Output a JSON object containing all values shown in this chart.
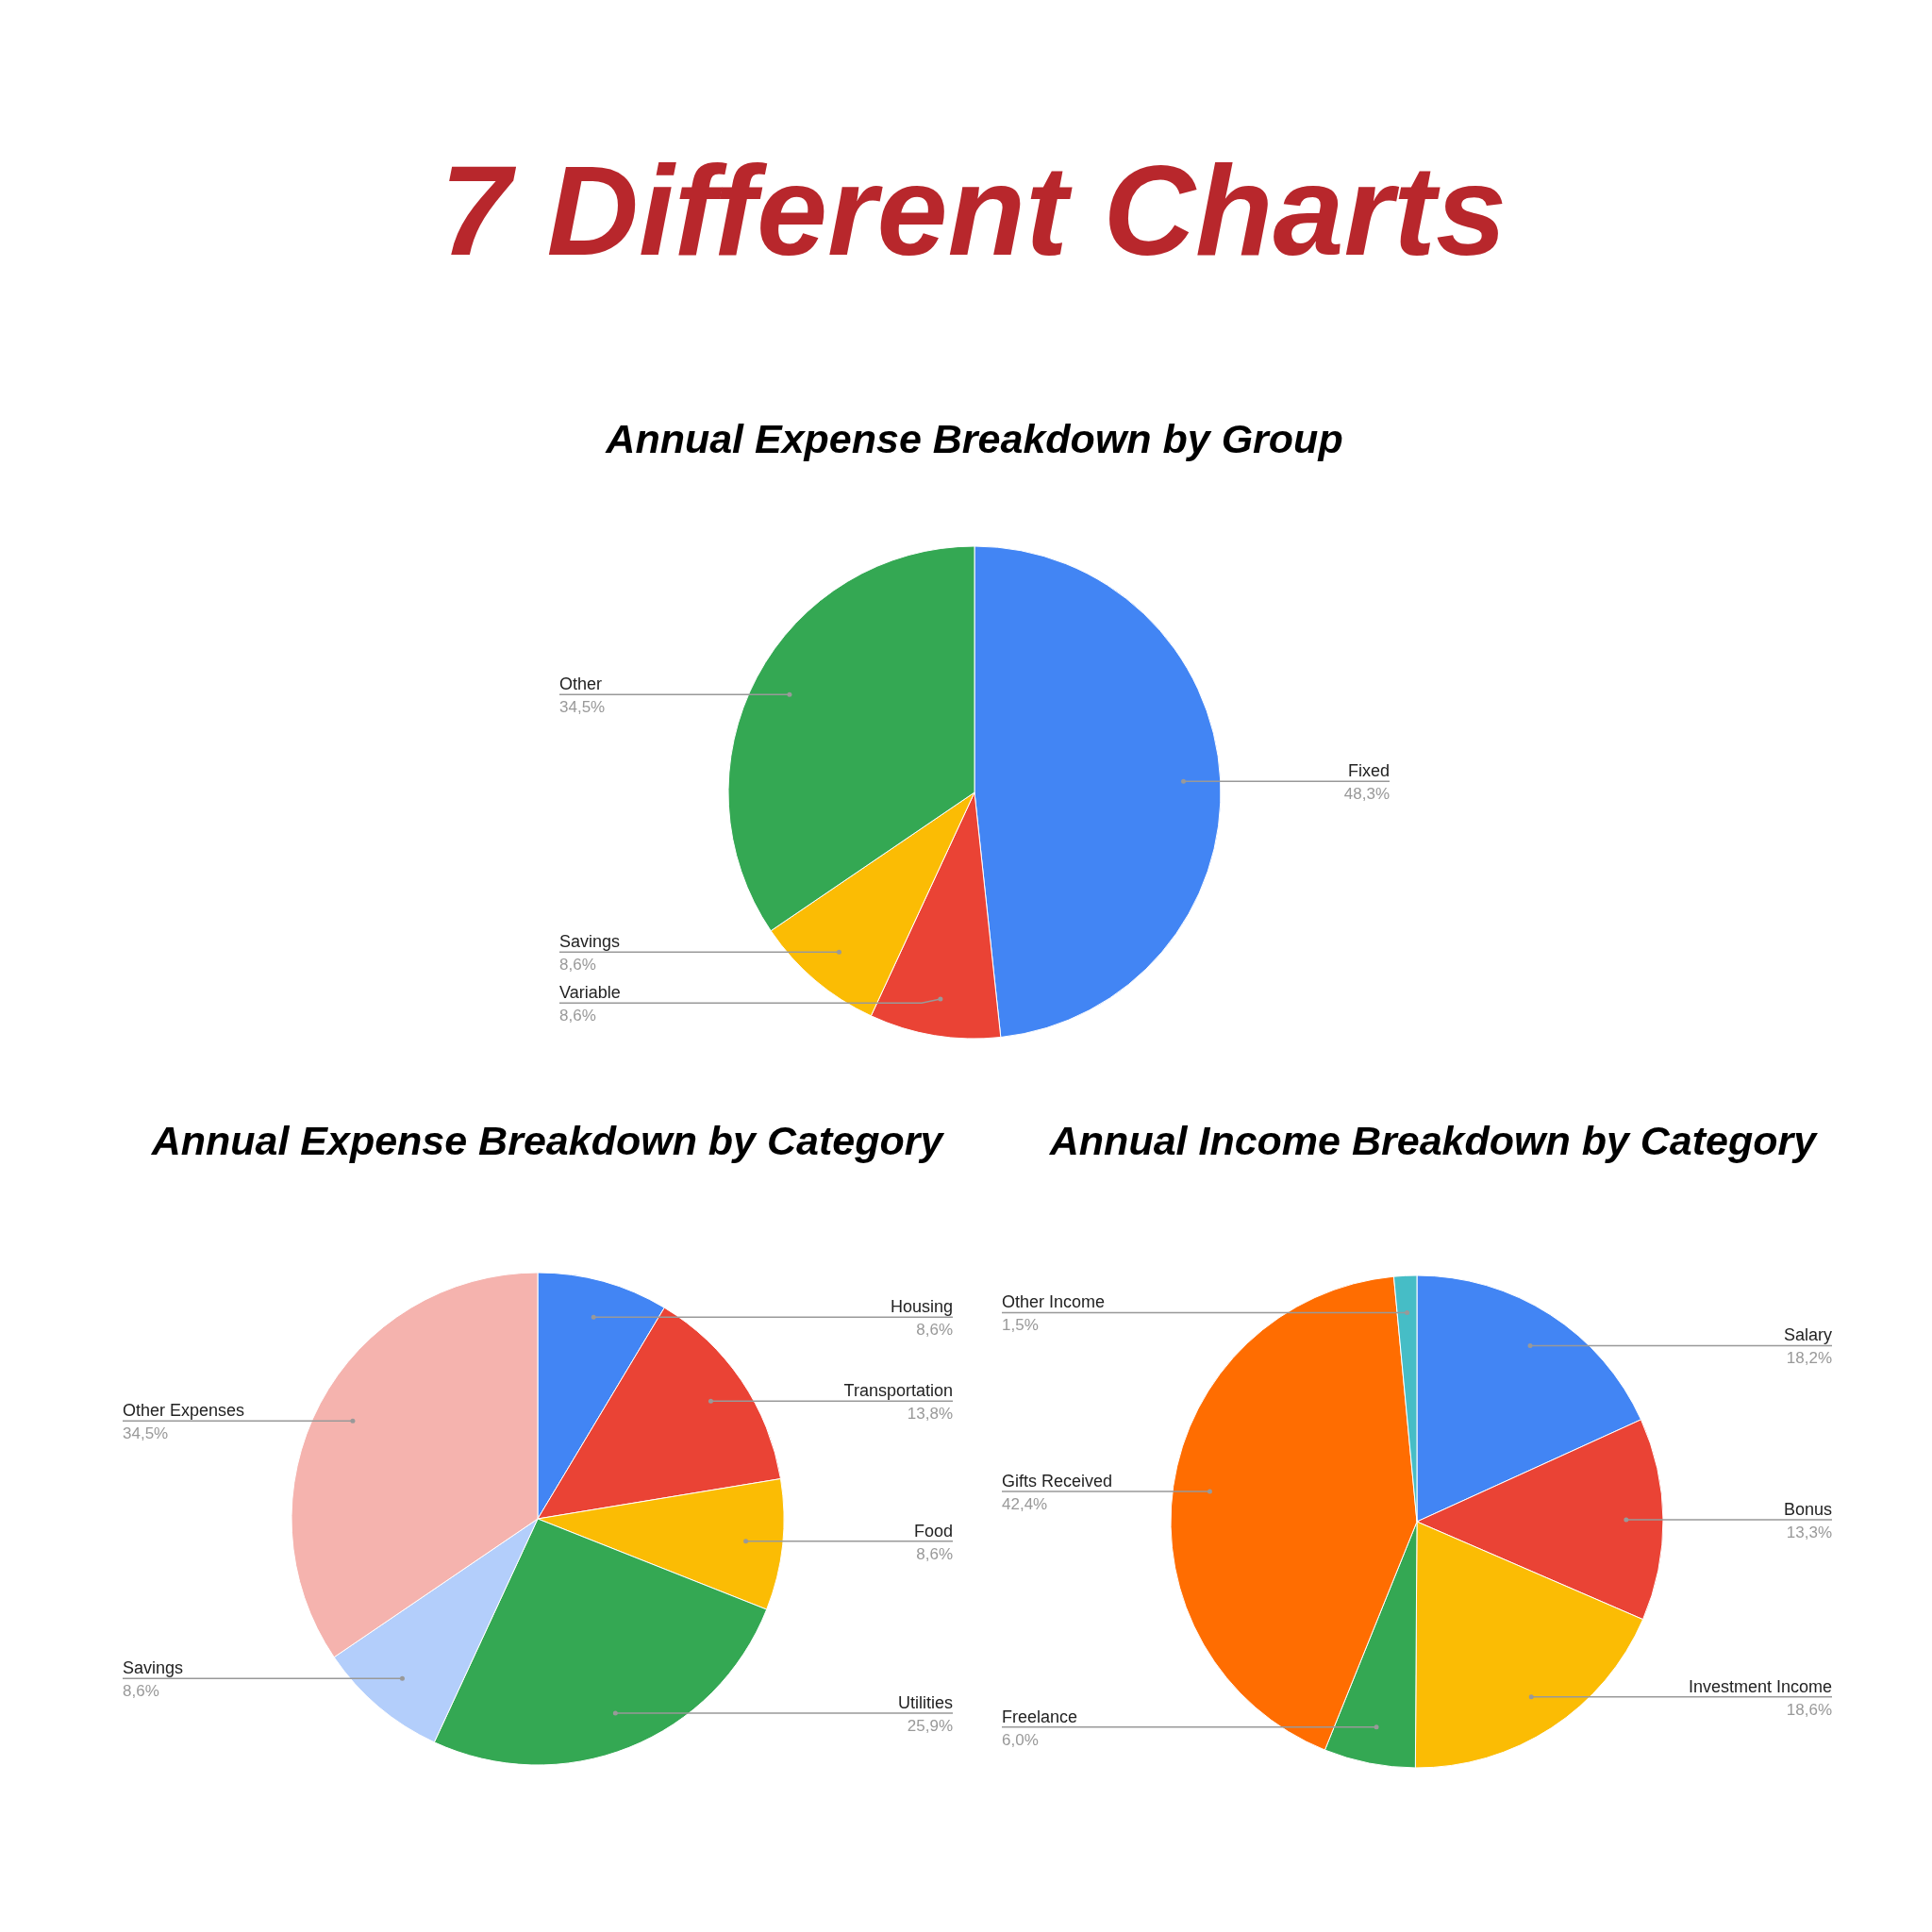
{
  "chart_data": [
    {
      "type": "other",
      "title": "7 Different Charts"
    },
    {
      "type": "pie",
      "title": "Annual Expense Breakdown by Group",
      "categories": [
        "Fixed",
        "Variable",
        "Savings",
        "Other"
      ],
      "values": [
        48.3,
        8.6,
        8.6,
        34.5
      ],
      "value_labels": [
        "48,3%",
        "8,6%",
        "8,6%",
        "34,5%"
      ],
      "colors": [
        "#4285f4",
        "#ea4335",
        "#fbbc04",
        "#34a853"
      ]
    },
    {
      "type": "pie",
      "title": "Annual Expense Breakdown by Category",
      "categories": [
        "Housing",
        "Transportation",
        "Food",
        "Utilities",
        "Savings",
        "Other Expenses"
      ],
      "values": [
        8.6,
        13.8,
        8.6,
        25.9,
        8.6,
        34.5
      ],
      "value_labels": [
        "8,6%",
        "13,8%",
        "8,6%",
        "25,9%",
        "8,6%",
        "34,5%"
      ],
      "colors": [
        "#4285f4",
        "#ea4335",
        "#fbbc04",
        "#34a853",
        "#b3cefb",
        "#f5b3ae"
      ]
    },
    {
      "type": "pie",
      "title": "Annual Income Breakdown by Category",
      "categories": [
        "Salary",
        "Bonus",
        "Investment Income",
        "Freelance",
        "Gifts Received",
        "Other Income"
      ],
      "values": [
        18.2,
        13.3,
        18.6,
        6.0,
        42.4,
        1.5
      ],
      "value_labels": [
        "18,2%",
        "13,3%",
        "18,6%",
        "6,0%",
        "42,4%",
        "1,5%"
      ],
      "colors": [
        "#4285f4",
        "#ea4335",
        "#fbbc04",
        "#34a853",
        "#ff6d01",
        "#46bdc6"
      ]
    }
  ]
}
